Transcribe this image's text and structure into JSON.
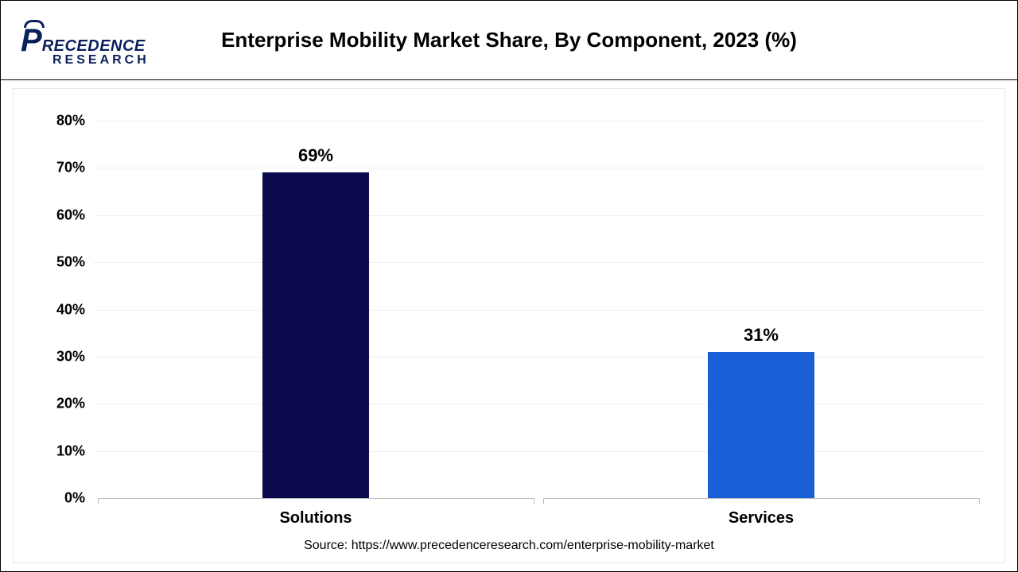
{
  "logo": {
    "line1": "RECEDENCE",
    "line2": "RESEARCH",
    "brand_color": "#0a1f5c"
  },
  "chart": {
    "type": "bar",
    "title": "Enterprise Mobility Market Share, By Component, 2023 (%)",
    "categories": [
      "Solutions",
      "Services"
    ],
    "values": [
      69,
      31
    ],
    "value_labels": [
      "69%",
      "31%"
    ],
    "bar_colors": [
      "#0a0a4d",
      "#1a5fd6"
    ],
    "bar_width_ratio": 0.24,
    "ylim": [
      0,
      80
    ],
    "ytick_step": 10,
    "ytick_labels": [
      "0%",
      "10%",
      "20%",
      "30%",
      "40%",
      "50%",
      "60%",
      "70%",
      "80%"
    ],
    "background_color": "#ffffff",
    "grid_color": "#f0f0f0",
    "axis_color": "#bfbfbf",
    "title_fontsize": 26,
    "value_label_fontsize": 22,
    "category_label_fontsize": 20,
    "tick_label_fontsize": 18,
    "text_color": "#000000"
  },
  "source": "Source: https://www.precedenceresearch.com/enterprise-mobility-market"
}
